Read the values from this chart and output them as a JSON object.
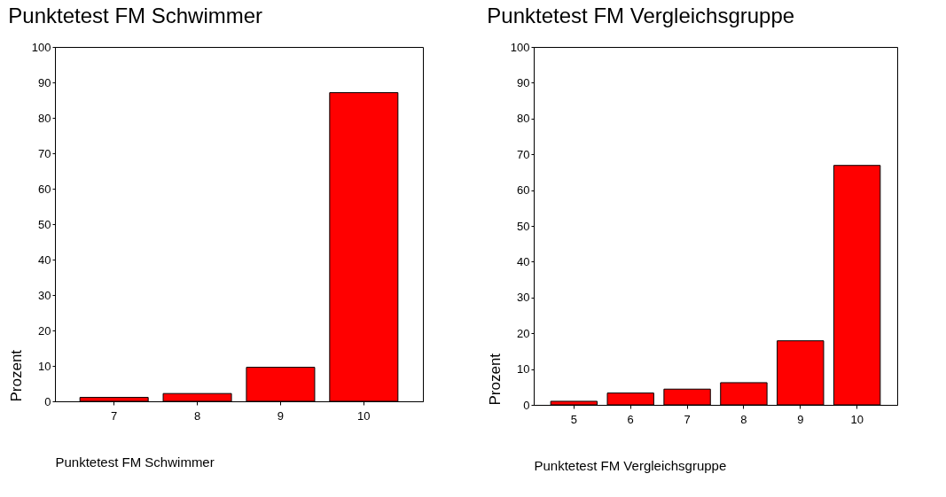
{
  "chart_data": [
    {
      "type": "bar",
      "title": "Punktetest FM Schwimmer",
      "xlabel": "Punktetest FM Schwimmer",
      "ylabel": "Prozent",
      "categories": [
        "7",
        "8",
        "9",
        "10"
      ],
      "values": [
        1.1,
        2.2,
        9.6,
        87.1
      ],
      "color": "#ff0000",
      "ylim": [
        0,
        100
      ],
      "yticks": [
        0,
        10,
        20,
        30,
        40,
        50,
        60,
        70,
        80,
        90,
        100
      ],
      "grid": false
    },
    {
      "type": "bar",
      "title": "Punktetest FM Vergleichsgruppe",
      "xlabel": "Punktetest FM Vergleichsgruppe",
      "ylabel": "Prozent",
      "categories": [
        "5",
        "6",
        "7",
        "8",
        "9",
        "10"
      ],
      "values": [
        1.0,
        3.3,
        4.4,
        6.2,
        17.9,
        66.9
      ],
      "color": "#ff0000",
      "ylim": [
        0,
        100
      ],
      "yticks": [
        0,
        10,
        20,
        30,
        40,
        50,
        60,
        70,
        80,
        90,
        100
      ],
      "grid": false
    }
  ]
}
